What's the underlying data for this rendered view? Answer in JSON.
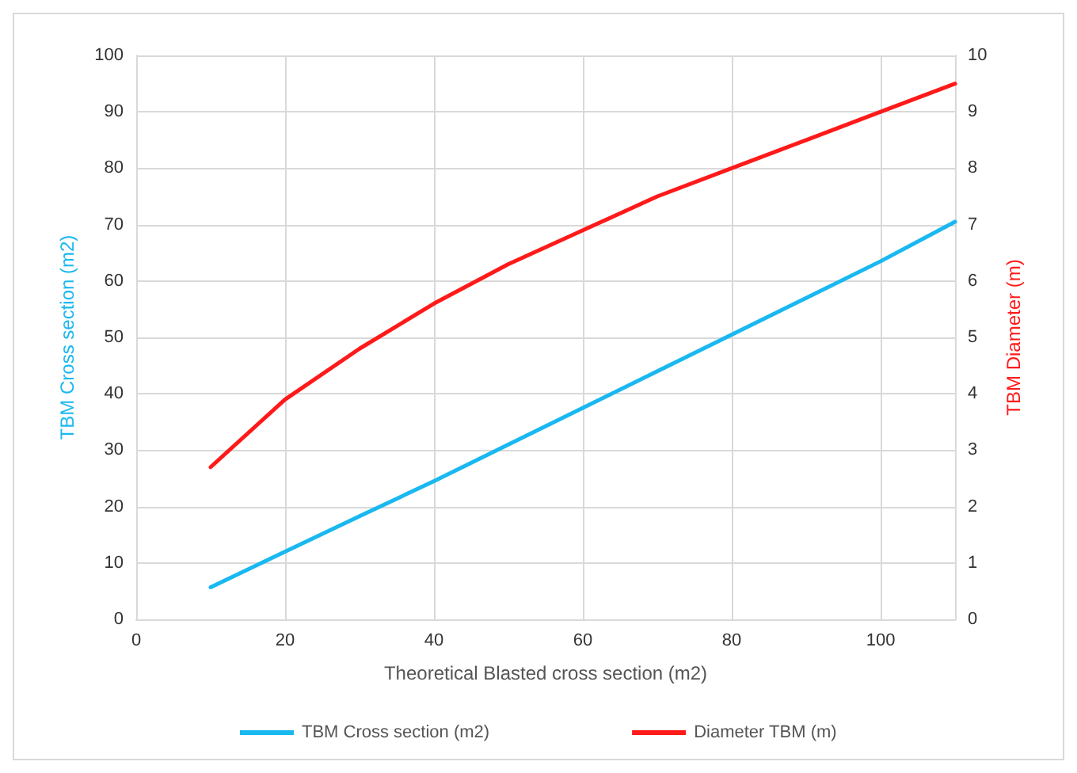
{
  "chart_data": {
    "type": "line",
    "xlabel": "Theoretical Blasted cross section (m2)",
    "ylabel": "TBM Cross section (m2)",
    "y2label": "TBM Diameter (m)",
    "x": [
      10,
      20,
      30,
      40,
      50,
      60,
      70,
      80,
      90,
      100,
      110
    ],
    "series": [
      {
        "name": "TBM Cross section (m2)",
        "color": "#1ab8f0",
        "values": [
          5.7,
          12,
          18.3,
          24.5,
          31,
          37.5,
          44,
          50.5,
          57,
          63.5,
          70.5
        ]
      },
      {
        "name": "Diameter TBM (m)",
        "color": "#ff1a1a",
        "axis": "y2",
        "values": [
          2.7,
          3.9,
          4.8,
          5.6,
          6.3,
          6.9,
          7.5,
          8.0,
          8.5,
          9.0,
          9.5
        ]
      }
    ],
    "xlim": [
      0,
      110
    ],
    "xticks": [
      0,
      20,
      40,
      60,
      80,
      100
    ],
    "ylim": [
      0,
      100
    ],
    "yticks": [
      0,
      10,
      20,
      30,
      40,
      50,
      60,
      70,
      80,
      90,
      100
    ],
    "y2lim": [
      0,
      10
    ],
    "y2ticks": [
      0,
      1,
      2,
      3,
      4,
      5,
      6,
      7,
      8,
      9,
      10
    ],
    "grid": true,
    "legend": "bottom",
    "marker": "none",
    "line_style": "solid"
  }
}
